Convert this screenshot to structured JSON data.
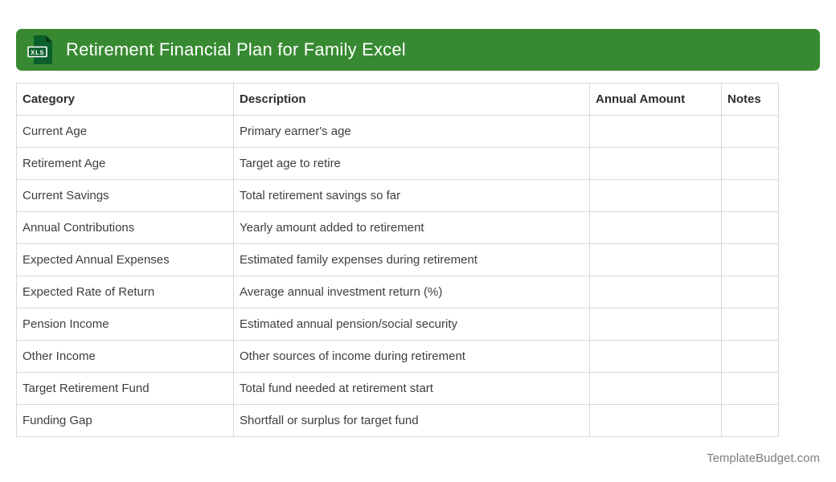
{
  "header": {
    "title": "Retirement Financial Plan for Family Excel",
    "icon_label": "XLS",
    "bar_color": "#388a32",
    "icon_color": "#0b5f2c"
  },
  "table": {
    "columns": [
      "Category",
      "Description",
      "Annual Amount",
      "Notes"
    ],
    "rows": [
      {
        "category": "Current Age",
        "description": "Primary earner's age",
        "annual_amount": "",
        "notes": ""
      },
      {
        "category": "Retirement Age",
        "description": "Target age to retire",
        "annual_amount": "",
        "notes": ""
      },
      {
        "category": "Current Savings",
        "description": "Total retirement savings so far",
        "annual_amount": "",
        "notes": ""
      },
      {
        "category": "Annual Contributions",
        "description": "Yearly amount added to retirement",
        "annual_amount": "",
        "notes": ""
      },
      {
        "category": "Expected Annual Expenses",
        "description": "Estimated family expenses during retirement",
        "annual_amount": "",
        "notes": ""
      },
      {
        "category": "Expected Rate of Return",
        "description": "Average annual investment return (%)",
        "annual_amount": "",
        "notes": ""
      },
      {
        "category": "Pension Income",
        "description": "Estimated annual pension/social security",
        "annual_amount": "",
        "notes": ""
      },
      {
        "category": "Other Income",
        "description": "Other sources of income during retirement",
        "annual_amount": "",
        "notes": ""
      },
      {
        "category": "Target Retirement Fund",
        "description": "Total fund needed at retirement start",
        "annual_amount": "",
        "notes": ""
      },
      {
        "category": "Funding Gap",
        "description": "Shortfall or surplus for target fund",
        "annual_amount": "",
        "notes": ""
      }
    ]
  },
  "footer": {
    "site": "TemplateBudget.com"
  }
}
